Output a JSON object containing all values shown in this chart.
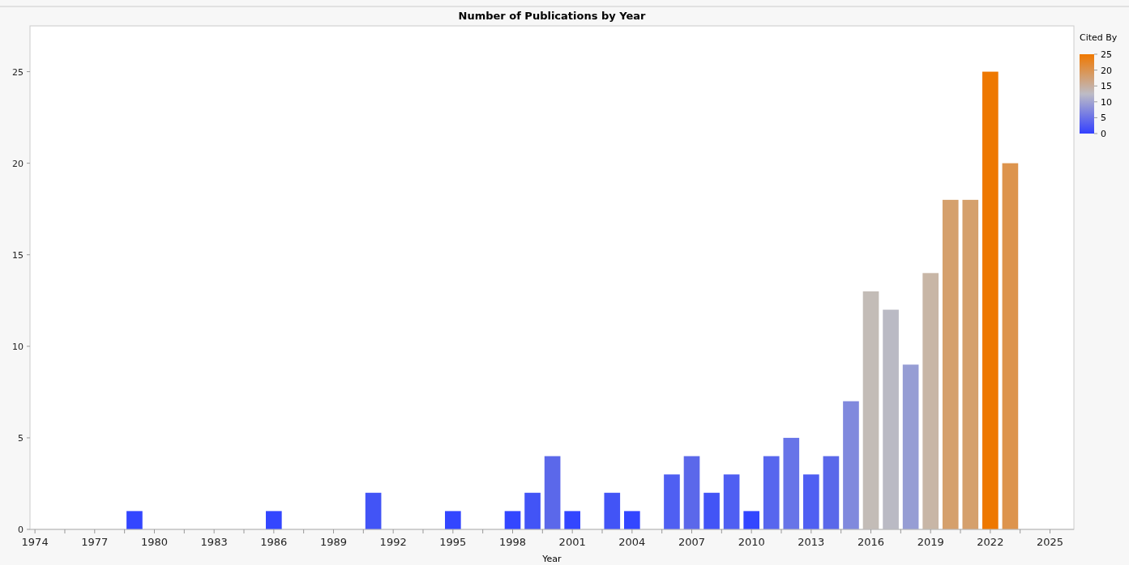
{
  "chart_data": {
    "type": "bar",
    "title": "Number of Publications by Year",
    "xlabel": "Year",
    "clabel": "Cited By",
    "x": [
      1979,
      1986,
      1991,
      1995,
      1998,
      1999,
      2000,
      2001,
      2003,
      2004,
      2006,
      2007,
      2008,
      2009,
      2010,
      2011,
      2012,
      2013,
      2014,
      2015,
      2016,
      2017,
      2018,
      2019,
      2020,
      2021,
      2022,
      2023
    ],
    "values": [
      1,
      1,
      2,
      1,
      1,
      2,
      4,
      1,
      2,
      1,
      3,
      4,
      2,
      3,
      1,
      4,
      5,
      3,
      4,
      7,
      13,
      12,
      9,
      14,
      18,
      18,
      25,
      20
    ],
    "colors": [
      "#3346ff",
      "#3346ff",
      "#4254f6",
      "#3346ff",
      "#3346ff",
      "#4254f6",
      "#5b68ea",
      "#3346ff",
      "#4254f6",
      "#3346ff",
      "#4f5ff2",
      "#5b68ea",
      "#4254f6",
      "#4f5ff2",
      "#3346ff",
      "#5766ee",
      "#6774e8",
      "#4f5ff2",
      "#5a68ea",
      "#8089dd",
      "#c3bcb7",
      "#babac4",
      "#969dd4",
      "#c8b6a6",
      "#d5a06c",
      "#d5a06c",
      "#ee7800",
      "#dd944d"
    ],
    "xlim": [
      1973.75,
      2026.2
    ],
    "xticks": [
      1974,
      {
        "value": 1975.5,
        "label": null
      },
      1977,
      {
        "value": 1978.5,
        "label": null
      },
      1980,
      {
        "value": 1981.5,
        "label": null
      },
      1983,
      {
        "value": 1984.5,
        "label": null
      },
      1986,
      {
        "value": 1987.5,
        "label": null
      },
      1989,
      {
        "value": 1990.5,
        "label": null
      },
      1992,
      {
        "value": 1993.5,
        "label": null
      },
      1995,
      {
        "value": 1996.5,
        "label": null
      },
      1998,
      {
        "value": 1999.5,
        "label": null
      },
      2001,
      {
        "value": 2002.5,
        "label": null
      },
      2004,
      {
        "value": 2005.5,
        "label": null
      },
      2007,
      {
        "value": 2008.5,
        "label": null
      },
      2010,
      {
        "value": 2011.5,
        "label": null
      },
      2013,
      {
        "value": 2014.5,
        "label": null
      },
      2016,
      {
        "value": 2017.5,
        "label": null
      },
      2019,
      {
        "value": 2020.5,
        "label": null
      },
      2022,
      {
        "value": 2023.5,
        "label": null
      },
      2025
    ],
    "ylim": [
      0,
      27.5
    ],
    "yticks": [
      0,
      5,
      10,
      15,
      20,
      25
    ],
    "clim": [
      0,
      25
    ],
    "cticks": [
      0,
      5,
      10,
      15,
      20,
      25
    ]
  }
}
